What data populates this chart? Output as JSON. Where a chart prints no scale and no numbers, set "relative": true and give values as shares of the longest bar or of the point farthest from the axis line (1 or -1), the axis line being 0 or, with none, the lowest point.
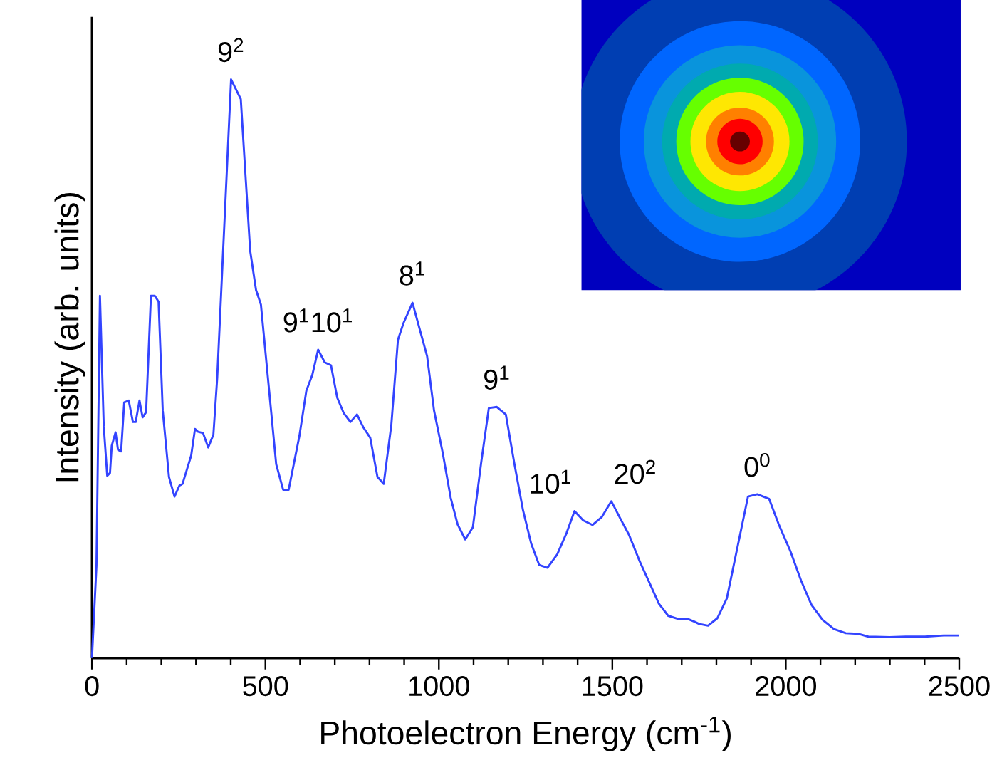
{
  "chart_data": {
    "type": "line",
    "relative": true,
    "tick_labels": "x",
    "xlabel": "Photoelectron Energy (cm$^{-1}$)",
    "ylabel": "Intensity (arb. units)",
    "xlim": [
      0,
      2500
    ],
    "xticks": [
      0,
      500,
      1000,
      1500,
      2000,
      2500
    ],
    "x": [
      0,
      13,
      23,
      34,
      44,
      52,
      57,
      68,
      75,
      84,
      93,
      106,
      118,
      126,
      137,
      146,
      156,
      170,
      181,
      192,
      204,
      222,
      238,
      252,
      261,
      286,
      297,
      306,
      320,
      335,
      350,
      361,
      401,
      429,
      456,
      473,
      487,
      531,
      551,
      567,
      598,
      618,
      635,
      652,
      671,
      689,
      707,
      726,
      745,
      764,
      782,
      802,
      823,
      841,
      863,
      882,
      898,
      924,
      966,
      986,
      1011,
      1034,
      1054,
      1076,
      1098,
      1122,
      1144,
      1167,
      1193,
      1217,
      1242,
      1266,
      1289,
      1313,
      1341,
      1368,
      1391,
      1416,
      1443,
      1470,
      1497,
      1524,
      1548,
      1579,
      1607,
      1634,
      1661,
      1688,
      1716,
      1736,
      1750,
      1776,
      1803,
      1830,
      1891,
      1918,
      1952,
      1979,
      2013,
      2044,
      2074,
      2106,
      2139,
      2173,
      2208,
      2238,
      2299,
      2347,
      2401,
      2455,
      2500
    ],
    "series": [
      {
        "color": "#3344ff",
        "values": [
          0,
          0.16,
          0.626,
          0.4,
          0.315,
          0.32,
          0.367,
          0.39,
          0.36,
          0.357,
          0.442,
          0.445,
          0.408,
          0.408,
          0.445,
          0.416,
          0.425,
          0.626,
          0.626,
          0.616,
          0.428,
          0.313,
          0.279,
          0.298,
          0.301,
          0.35,
          0.396,
          0.391,
          0.389,
          0.364,
          0.386,
          0.484,
          1.0,
          0.966,
          0.704,
          0.636,
          0.611,
          0.335,
          0.291,
          0.291,
          0.384,
          0.462,
          0.489,
          0.533,
          0.511,
          0.506,
          0.45,
          0.423,
          0.408,
          0.421,
          0.399,
          0.381,
          0.313,
          0.301,
          0.403,
          0.55,
          0.579,
          0.614,
          0.522,
          0.428,
          0.355,
          0.277,
          0.231,
          0.205,
          0.226,
          0.338,
          0.432,
          0.434,
          0.421,
          0.338,
          0.257,
          0.198,
          0.161,
          0.156,
          0.179,
          0.216,
          0.254,
          0.238,
          0.23,
          0.244,
          0.271,
          0.24,
          0.213,
          0.167,
          0.13,
          0.094,
          0.073,
          0.068,
          0.068,
          0.063,
          0.059,
          0.056,
          0.069,
          0.103,
          0.279,
          0.283,
          0.275,
          0.232,
          0.185,
          0.134,
          0.092,
          0.066,
          0.05,
          0.043,
          0.042,
          0.037,
          0.036,
          0.037,
          0.037,
          0.039,
          0.039
        ]
      }
    ],
    "annotations": [
      {
        "text": "9$^{2}$",
        "x": 401,
        "y": 1.0
      },
      {
        "text": "9$^{1}$10$^{1}$",
        "x": 652,
        "y": 0.533
      },
      {
        "text": "8$^{1}$",
        "x": 924,
        "y": 0.614
      },
      {
        "text": "9$^{1}$",
        "x": 1167,
        "y": 0.434
      },
      {
        "text": "10$^{1}$",
        "x": 1391,
        "y": 0.254
      },
      {
        "text": "20$^{2}$",
        "x": 1497,
        "y": 0.271
      },
      {
        "text": "0$^{0}$",
        "x": 1918,
        "y": 0.283
      }
    ],
    "grid": false,
    "line_style": "solid",
    "marker": "none"
  }
}
